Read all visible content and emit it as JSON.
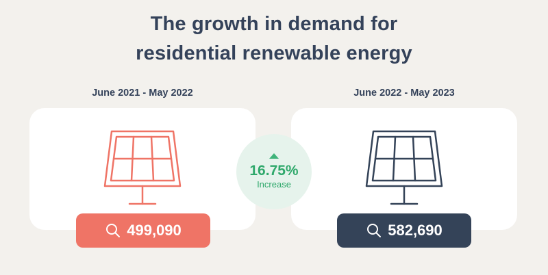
{
  "title": {
    "line1": "The growth in demand for",
    "line2": "residential renewable energy"
  },
  "left": {
    "period": "June 2021 - May 2022",
    "value": "499,090",
    "color": "#ef7466",
    "icon": "solar-panel-icon"
  },
  "right": {
    "period": "June 2022 - May 2023",
    "value": "582,690",
    "color": "#344358",
    "icon": "solar-panel-icon"
  },
  "change": {
    "percent": "16.75%",
    "label": "Increase",
    "icon": "up-triangle-icon"
  }
}
